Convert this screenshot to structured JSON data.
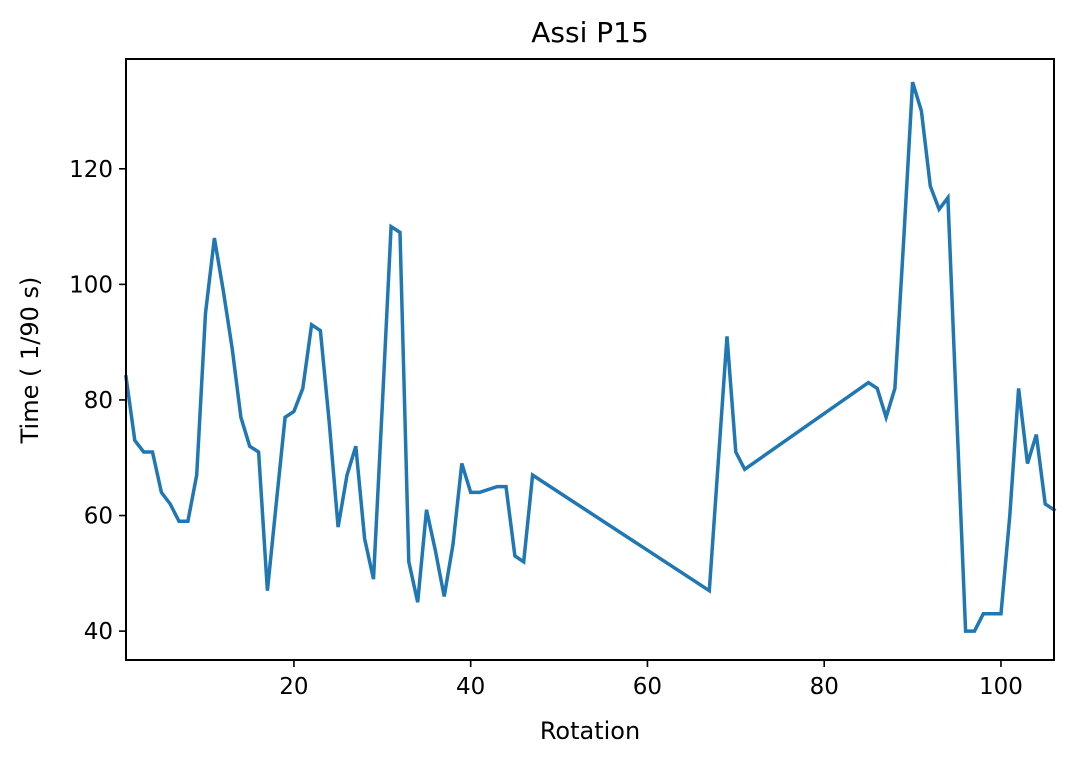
{
  "chart_data": {
    "type": "line",
    "title": "Assi P15",
    "xlabel": "Rotation",
    "ylabel": "Time ( 1/90 s)",
    "xlim": [
      1,
      106
    ],
    "ylim": [
      35,
      139
    ],
    "x_ticks": [
      20,
      40,
      60,
      80,
      100
    ],
    "y_ticks": [
      40,
      60,
      80,
      100,
      120
    ],
    "grid": false,
    "series": [
      {
        "color": "#1f77b4",
        "points": [
          [
            1,
            84
          ],
          [
            2,
            73
          ],
          [
            3,
            71
          ],
          [
            4,
            71
          ],
          [
            5,
            64
          ],
          [
            6,
            62
          ],
          [
            7,
            59
          ],
          [
            8,
            59
          ],
          [
            9,
            67
          ],
          [
            10,
            95
          ],
          [
            11,
            108
          ],
          [
            12,
            99
          ],
          [
            13,
            89
          ],
          [
            14,
            77
          ],
          [
            15,
            72
          ],
          [
            16,
            71
          ],
          [
            17,
            47
          ],
          [
            18,
            62
          ],
          [
            19,
            77
          ],
          [
            20,
            78
          ],
          [
            21,
            82
          ],
          [
            22,
            93
          ],
          [
            23,
            92
          ],
          [
            24,
            76
          ],
          [
            25,
            58
          ],
          [
            26,
            67
          ],
          [
            27,
            72
          ],
          [
            28,
            56
          ],
          [
            29,
            49
          ],
          [
            30,
            79
          ],
          [
            31,
            110
          ],
          [
            32,
            109
          ],
          [
            33,
            52
          ],
          [
            34,
            45
          ],
          [
            35,
            61
          ],
          [
            36,
            54
          ],
          [
            37,
            46
          ],
          [
            38,
            55
          ],
          [
            39,
            69
          ],
          [
            40,
            64
          ],
          [
            41,
            64
          ],
          [
            43,
            65
          ],
          [
            44,
            65
          ],
          [
            45,
            53
          ],
          [
            46,
            52
          ],
          [
            47,
            67
          ],
          [
            67,
            47
          ],
          [
            69,
            91
          ],
          [
            70,
            71
          ],
          [
            71,
            68
          ],
          [
            85,
            83
          ],
          [
            86,
            82
          ],
          [
            87,
            77
          ],
          [
            88,
            82
          ],
          [
            89,
            108
          ],
          [
            90,
            135
          ],
          [
            91,
            130
          ],
          [
            92,
            117
          ],
          [
            93,
            113
          ],
          [
            94,
            115
          ],
          [
            95,
            77
          ],
          [
            96,
            40
          ],
          [
            97,
            40
          ],
          [
            98,
            43
          ],
          [
            99,
            43
          ],
          [
            100,
            43
          ],
          [
            101,
            60
          ],
          [
            102,
            82
          ],
          [
            103,
            69
          ],
          [
            104,
            74
          ],
          [
            105,
            62
          ],
          [
            106,
            61
          ]
        ]
      }
    ]
  }
}
